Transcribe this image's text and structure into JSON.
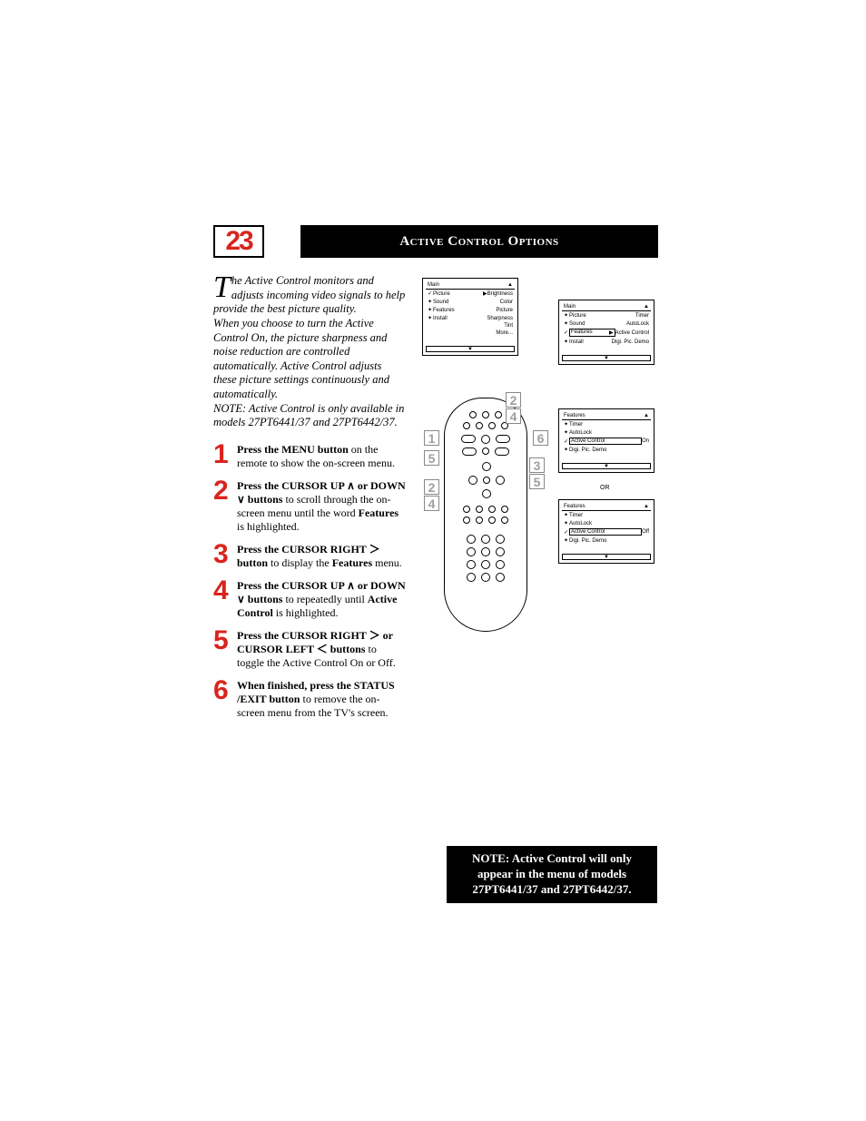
{
  "page_number": "23",
  "title": "Active Control Options",
  "intro": {
    "dropcap": "T",
    "para1_rest": "he Active Control monitors and adjusts incoming video signals to help provide the best picture quality.",
    "para2": "When you choose to turn the Active Control On, the picture sharpness and noise reduction are controlled automatically. Active Control adjusts these picture settings continuously and automatically.",
    "note": "NOTE: Active Control is only available in models 27PT6441/37 and 27PT6442/37."
  },
  "steps": [
    {
      "num": "1",
      "bold": "Press the MENU button",
      "rest": " on the remote to show the on-screen menu."
    },
    {
      "num": "2",
      "bold": "Press the CURSOR UP ∧ or DOWN ∨ buttons",
      "rest": " to scroll through the on-screen menu until the word ",
      "bold2": "Features",
      "rest2": " is highlighted."
    },
    {
      "num": "3",
      "bold": "Press the CURSOR RIGHT ＞  button",
      "rest": " to display the ",
      "bold2": "Features",
      "rest2": " menu."
    },
    {
      "num": "4",
      "bold": "Press the CURSOR UP ∧ or DOWN ∨ buttons",
      "rest": " to repeatedly until ",
      "bold2": "Active Control",
      "rest2": " is highlighted."
    },
    {
      "num": "5",
      "bold": "Press the CURSOR RIGHT ＞ or CURSOR LEFT ＜ buttons",
      "rest": " to toggle the Active Control On or Off."
    },
    {
      "num": "6",
      "bold": "When finished, press the STATUS /EXIT button",
      "rest": " to remove the on-screen menu from the TV's screen."
    }
  ],
  "menu1": {
    "title": "Main",
    "title_arrow": "▲",
    "rows": [
      {
        "mk": "✓",
        "lbl": "Picture",
        "arrow": "▶",
        "val": "Brightness"
      },
      {
        "mk": "✦",
        "lbl": "Sound",
        "val": "Color"
      },
      {
        "mk": "✦",
        "lbl": "Features",
        "val": "Picture"
      },
      {
        "mk": "✦",
        "lbl": "Install",
        "val": "Sharpness"
      },
      {
        "mk": "",
        "lbl": "",
        "val": "Tint"
      },
      {
        "mk": "",
        "lbl": "",
        "val": "More..."
      }
    ]
  },
  "menu2": {
    "title": "Main",
    "title_arrow": "▲",
    "rows": [
      {
        "mk": "✦",
        "lbl": "Picture",
        "val": "Timer"
      },
      {
        "mk": "✦",
        "lbl": "Sound",
        "val": "AutoLock"
      },
      {
        "mk": "✓",
        "lbl": "Features",
        "arrow": "▶",
        "val": "Active Control",
        "hl": true
      },
      {
        "mk": "✦",
        "lbl": "Install",
        "val": "Digi. Pic. Demo"
      }
    ]
  },
  "menu3": {
    "title": "Features",
    "title_arrow": "▲",
    "rows": [
      {
        "mk": "✦",
        "lbl": "Timer",
        "val": ""
      },
      {
        "mk": "✦",
        "lbl": "AutoLock",
        "val": ""
      },
      {
        "mk": "✓",
        "lbl": "Active Control",
        "val": "On",
        "hl": true
      },
      {
        "mk": "✦",
        "lbl": "Digi. Pic. Demo",
        "val": ""
      }
    ]
  },
  "menu4": {
    "title": "Features",
    "title_arrow": "▲",
    "rows": [
      {
        "mk": "✦",
        "lbl": "Timer",
        "val": ""
      },
      {
        "mk": "✦",
        "lbl": "AutoLock",
        "val": ""
      },
      {
        "mk": "✓",
        "lbl": "Active Control",
        "val": "Off",
        "hl": true
      },
      {
        "mk": "✦",
        "lbl": "Digi. Pic. Demo",
        "val": ""
      }
    ]
  },
  "or_label": "OR",
  "callouts_left": [
    "1",
    "5",
    "2",
    "4"
  ],
  "callouts_top": [
    "2",
    "4"
  ],
  "callouts_right_a": [
    "6"
  ],
  "callouts_right_b": [
    "3",
    "5"
  ],
  "note_box": "NOTE:  Active Control will only appear in the menu of models 27PT6441/37 and 27PT6442/37.",
  "colors": {
    "accent": "#d9241c",
    "callout_gray": "#9aa0a6"
  }
}
